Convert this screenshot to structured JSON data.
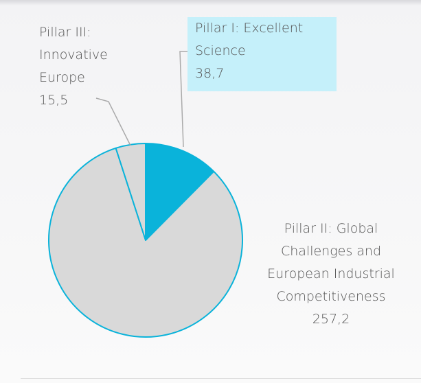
{
  "chart_data": {
    "type": "pie",
    "categories": [
      "Pillar I: Excellent Science",
      "Pillar II: Global Challenges and European Industrial Competitiveness",
      "Pillar III: Innovative Europe"
    ],
    "values": [
      38.7,
      257.2,
      15.5
    ],
    "value_labels": [
      "38,7",
      "257,2",
      "15,5"
    ],
    "colors": [
      "#0ab3da",
      "#d9d9d9",
      "#d9d9d9"
    ],
    "start_angle": 0,
    "direction": "clockwise"
  }
}
